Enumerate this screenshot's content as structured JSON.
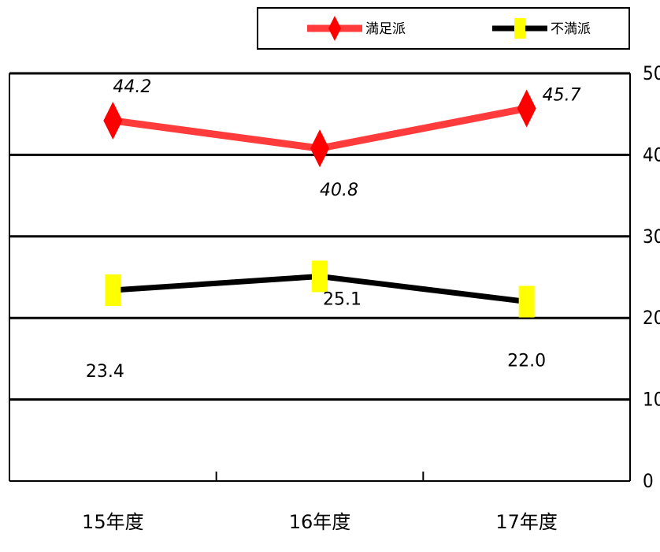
{
  "chart_data": {
    "type": "line",
    "categories": [
      "15年度",
      "16年度",
      "17年度"
    ],
    "ylim": [
      0,
      50
    ],
    "y_ticks": [
      "0",
      "10",
      "20",
      "30",
      "40",
      "50"
    ],
    "grid": true,
    "legend_position": "top-right",
    "series": [
      {
        "name": "満足派",
        "values": [
          44.2,
          40.8,
          45.7
        ],
        "labels": [
          "44.2",
          "40.8",
          "45.7"
        ],
        "color": "#ff3b3b",
        "marker": "diamond",
        "marker_color": "#ff0000"
      },
      {
        "name": "不満派",
        "values": [
          23.4,
          25.1,
          22.0
        ],
        "labels": [
          "23.4",
          "25.1",
          "22.0"
        ],
        "color": "#000000",
        "marker": "square",
        "marker_color": "#ffff00"
      }
    ]
  }
}
